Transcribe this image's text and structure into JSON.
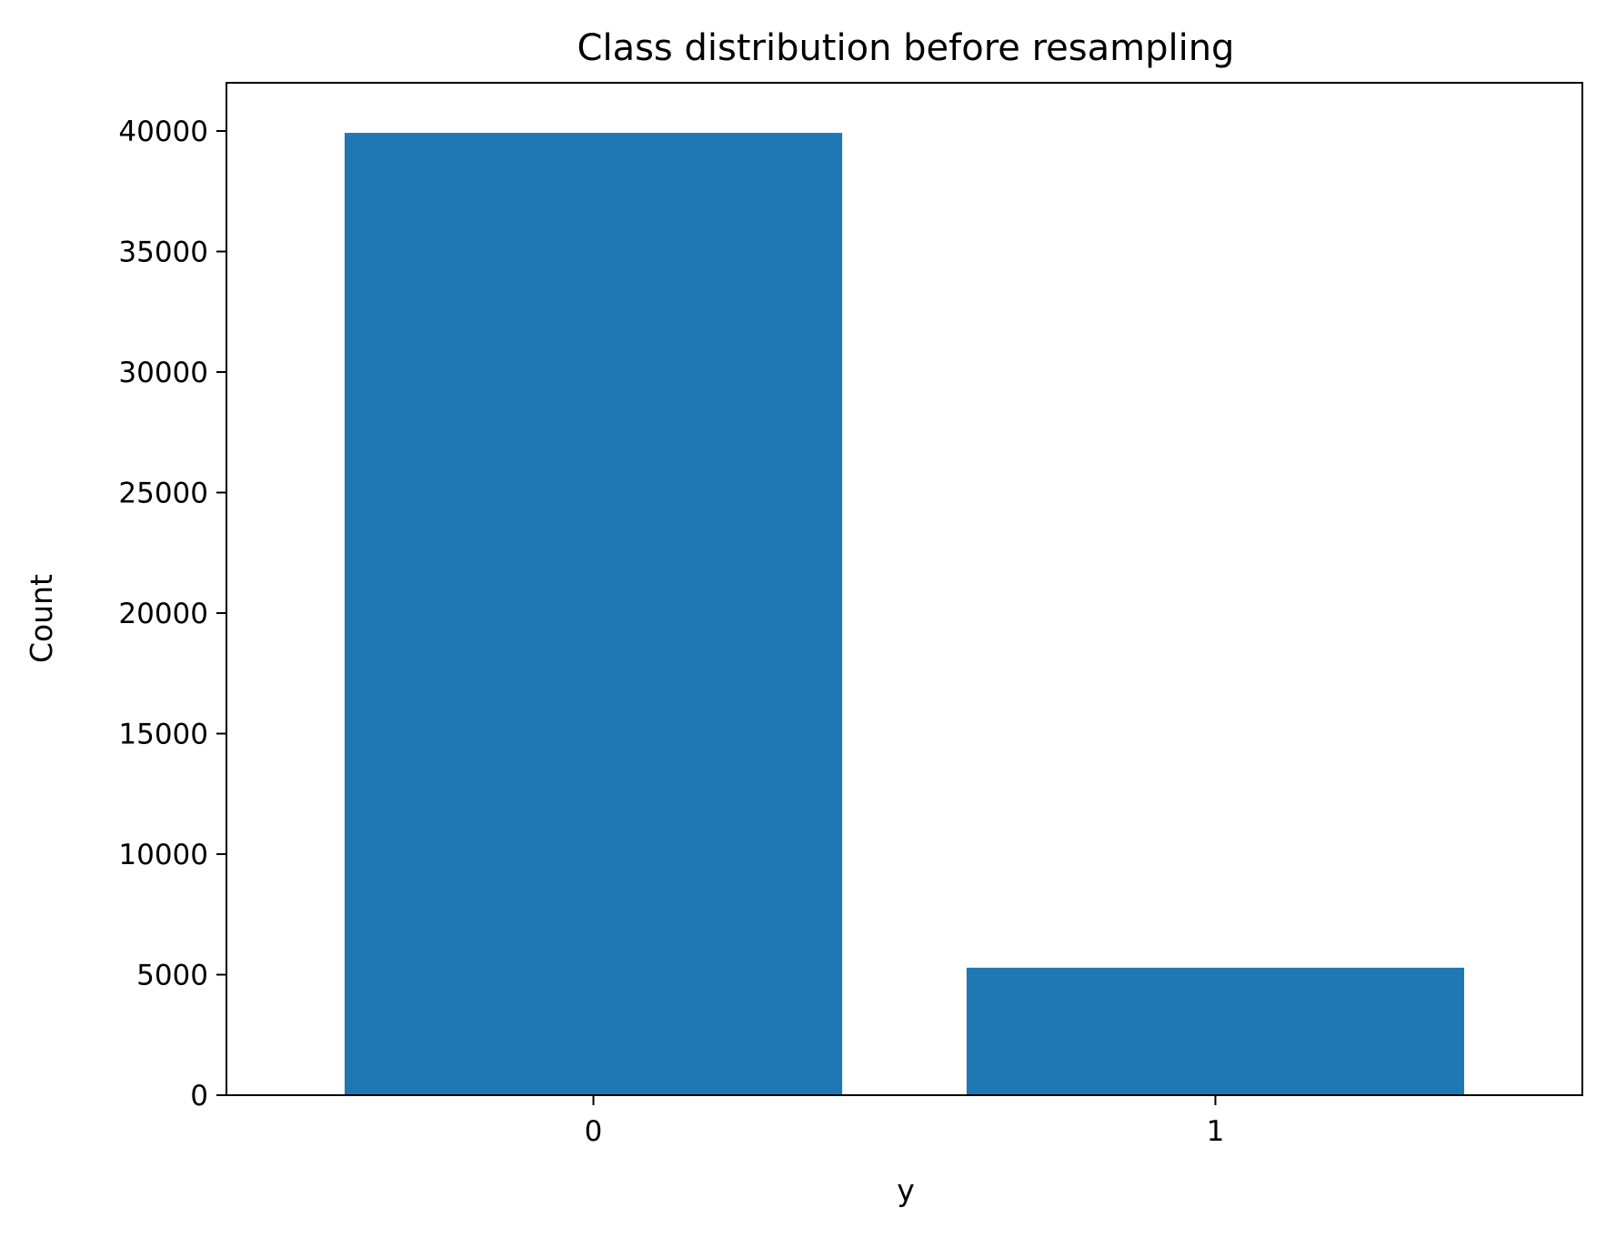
{
  "chart_data": {
    "type": "bar",
    "title": "Class distribution before resampling",
    "xlabel": "y",
    "ylabel": "Count",
    "categories": [
      "0",
      "1"
    ],
    "values": [
      39922,
      5289
    ],
    "ylim": [
      0,
      42000
    ],
    "yticks": [
      0,
      5000,
      10000,
      15000,
      20000,
      25000,
      30000,
      35000,
      40000
    ],
    "bar_color": "#1f77b4",
    "grid": false,
    "legend": "none"
  }
}
